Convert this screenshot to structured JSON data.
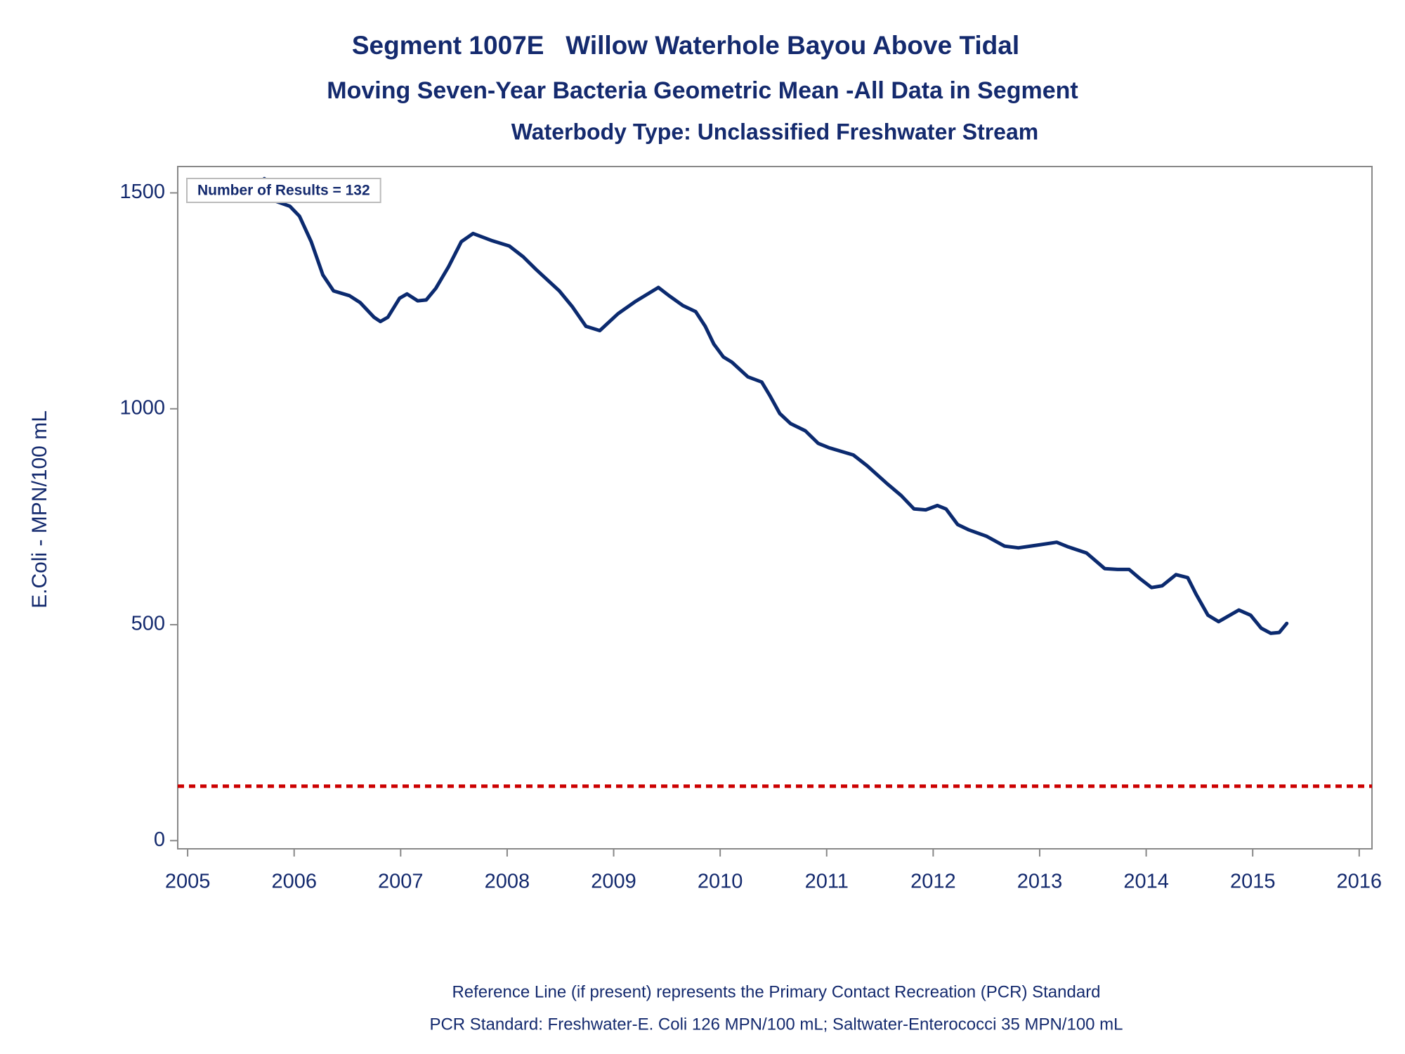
{
  "chart_data": {
    "type": "line",
    "title": "Segment 1007E   Willow Waterhole Bayou Above Tidal",
    "subtitle": "Moving Seven-Year Bacteria Geometric Mean -All Data in Segment",
    "subtitle2": "Waterbody Type: Unclassified Freshwater Stream",
    "y_label": "E.Coli - MPN/100 mL",
    "annotation": "Number of Results = 132",
    "footnotes": [
      "Reference Line (if present) represents the Primary Contact Recreation (PCR) Standard",
      "PCR Standard: Freshwater-E. Coli 126 MPN/100 mL; Saltwater-Enterococci 35 MPN/100 mL"
    ],
    "xlim": [
      2004.907,
      2016.12
    ],
    "xticks": [
      2005,
      2006,
      2007,
      2008,
      2009,
      2010,
      2011,
      2012,
      2013,
      2014,
      2015,
      2016
    ],
    "ylim": [
      -19,
      1561
    ],
    "yticks": [
      0,
      500,
      1000,
      1500
    ],
    "reference_line": {
      "value": 126,
      "color": "#cc0000"
    },
    "series": [
      {
        "color": "#0b2a6f",
        "x": [
          2005.72,
          2005.8,
          2005.96,
          2006.05,
          2006.16,
          2006.27,
          2006.37,
          2006.52,
          2006.62,
          2006.75,
          2006.81,
          2006.88,
          2006.99,
          2007.06,
          2007.16,
          2007.24,
          2007.33,
          2007.45,
          2007.57,
          2007.68,
          2007.85,
          2008.02,
          2008.15,
          2008.27,
          2008.49,
          2008.61,
          2008.74,
          2008.87,
          2009.04,
          2009.2,
          2009.42,
          2009.52,
          2009.65,
          2009.77,
          2009.86,
          2009.94,
          2010.03,
          2010.11,
          2010.26,
          2010.39,
          2010.47,
          2010.56,
          2010.66,
          2010.8,
          2010.92,
          2011.02,
          2011.25,
          2011.38,
          2011.57,
          2011.7,
          2011.82,
          2011.93,
          2012.04,
          2012.12,
          2012.23,
          2012.33,
          2012.5,
          2012.67,
          2012.8,
          2012.97,
          2013.16,
          2013.27,
          2013.44,
          2013.61,
          2013.73,
          2013.84,
          2013.94,
          2014.05,
          2014.15,
          2014.28,
          2014.39,
          2014.47,
          2014.58,
          2014.68,
          2014.87,
          2014.98,
          2015.08,
          2015.17,
          2015.25,
          2015.32
        ],
        "values": [
          1533,
          1483,
          1469,
          1446,
          1387,
          1310,
          1273,
          1262,
          1246,
          1212,
          1202,
          1212,
          1256,
          1266,
          1250,
          1252,
          1279,
          1329,
          1387,
          1406,
          1390,
          1377,
          1352,
          1323,
          1273,
          1237,
          1191,
          1181,
          1220,
          1248,
          1281,
          1262,
          1239,
          1225,
          1191,
          1150,
          1120,
          1108,
          1074,
          1062,
          1029,
          989,
          966,
          949,
          920,
          910,
          893,
          868,
          826,
          799,
          768,
          766,
          776,
          768,
          732,
          720,
          705,
          682,
          678,
          684,
          691,
          680,
          666,
          630,
          628,
          628,
          607,
          586,
          590,
          616,
          609,
          570,
          522,
          507,
          534,
          522,
          492,
          480,
          482,
          503
        ]
      }
    ]
  }
}
